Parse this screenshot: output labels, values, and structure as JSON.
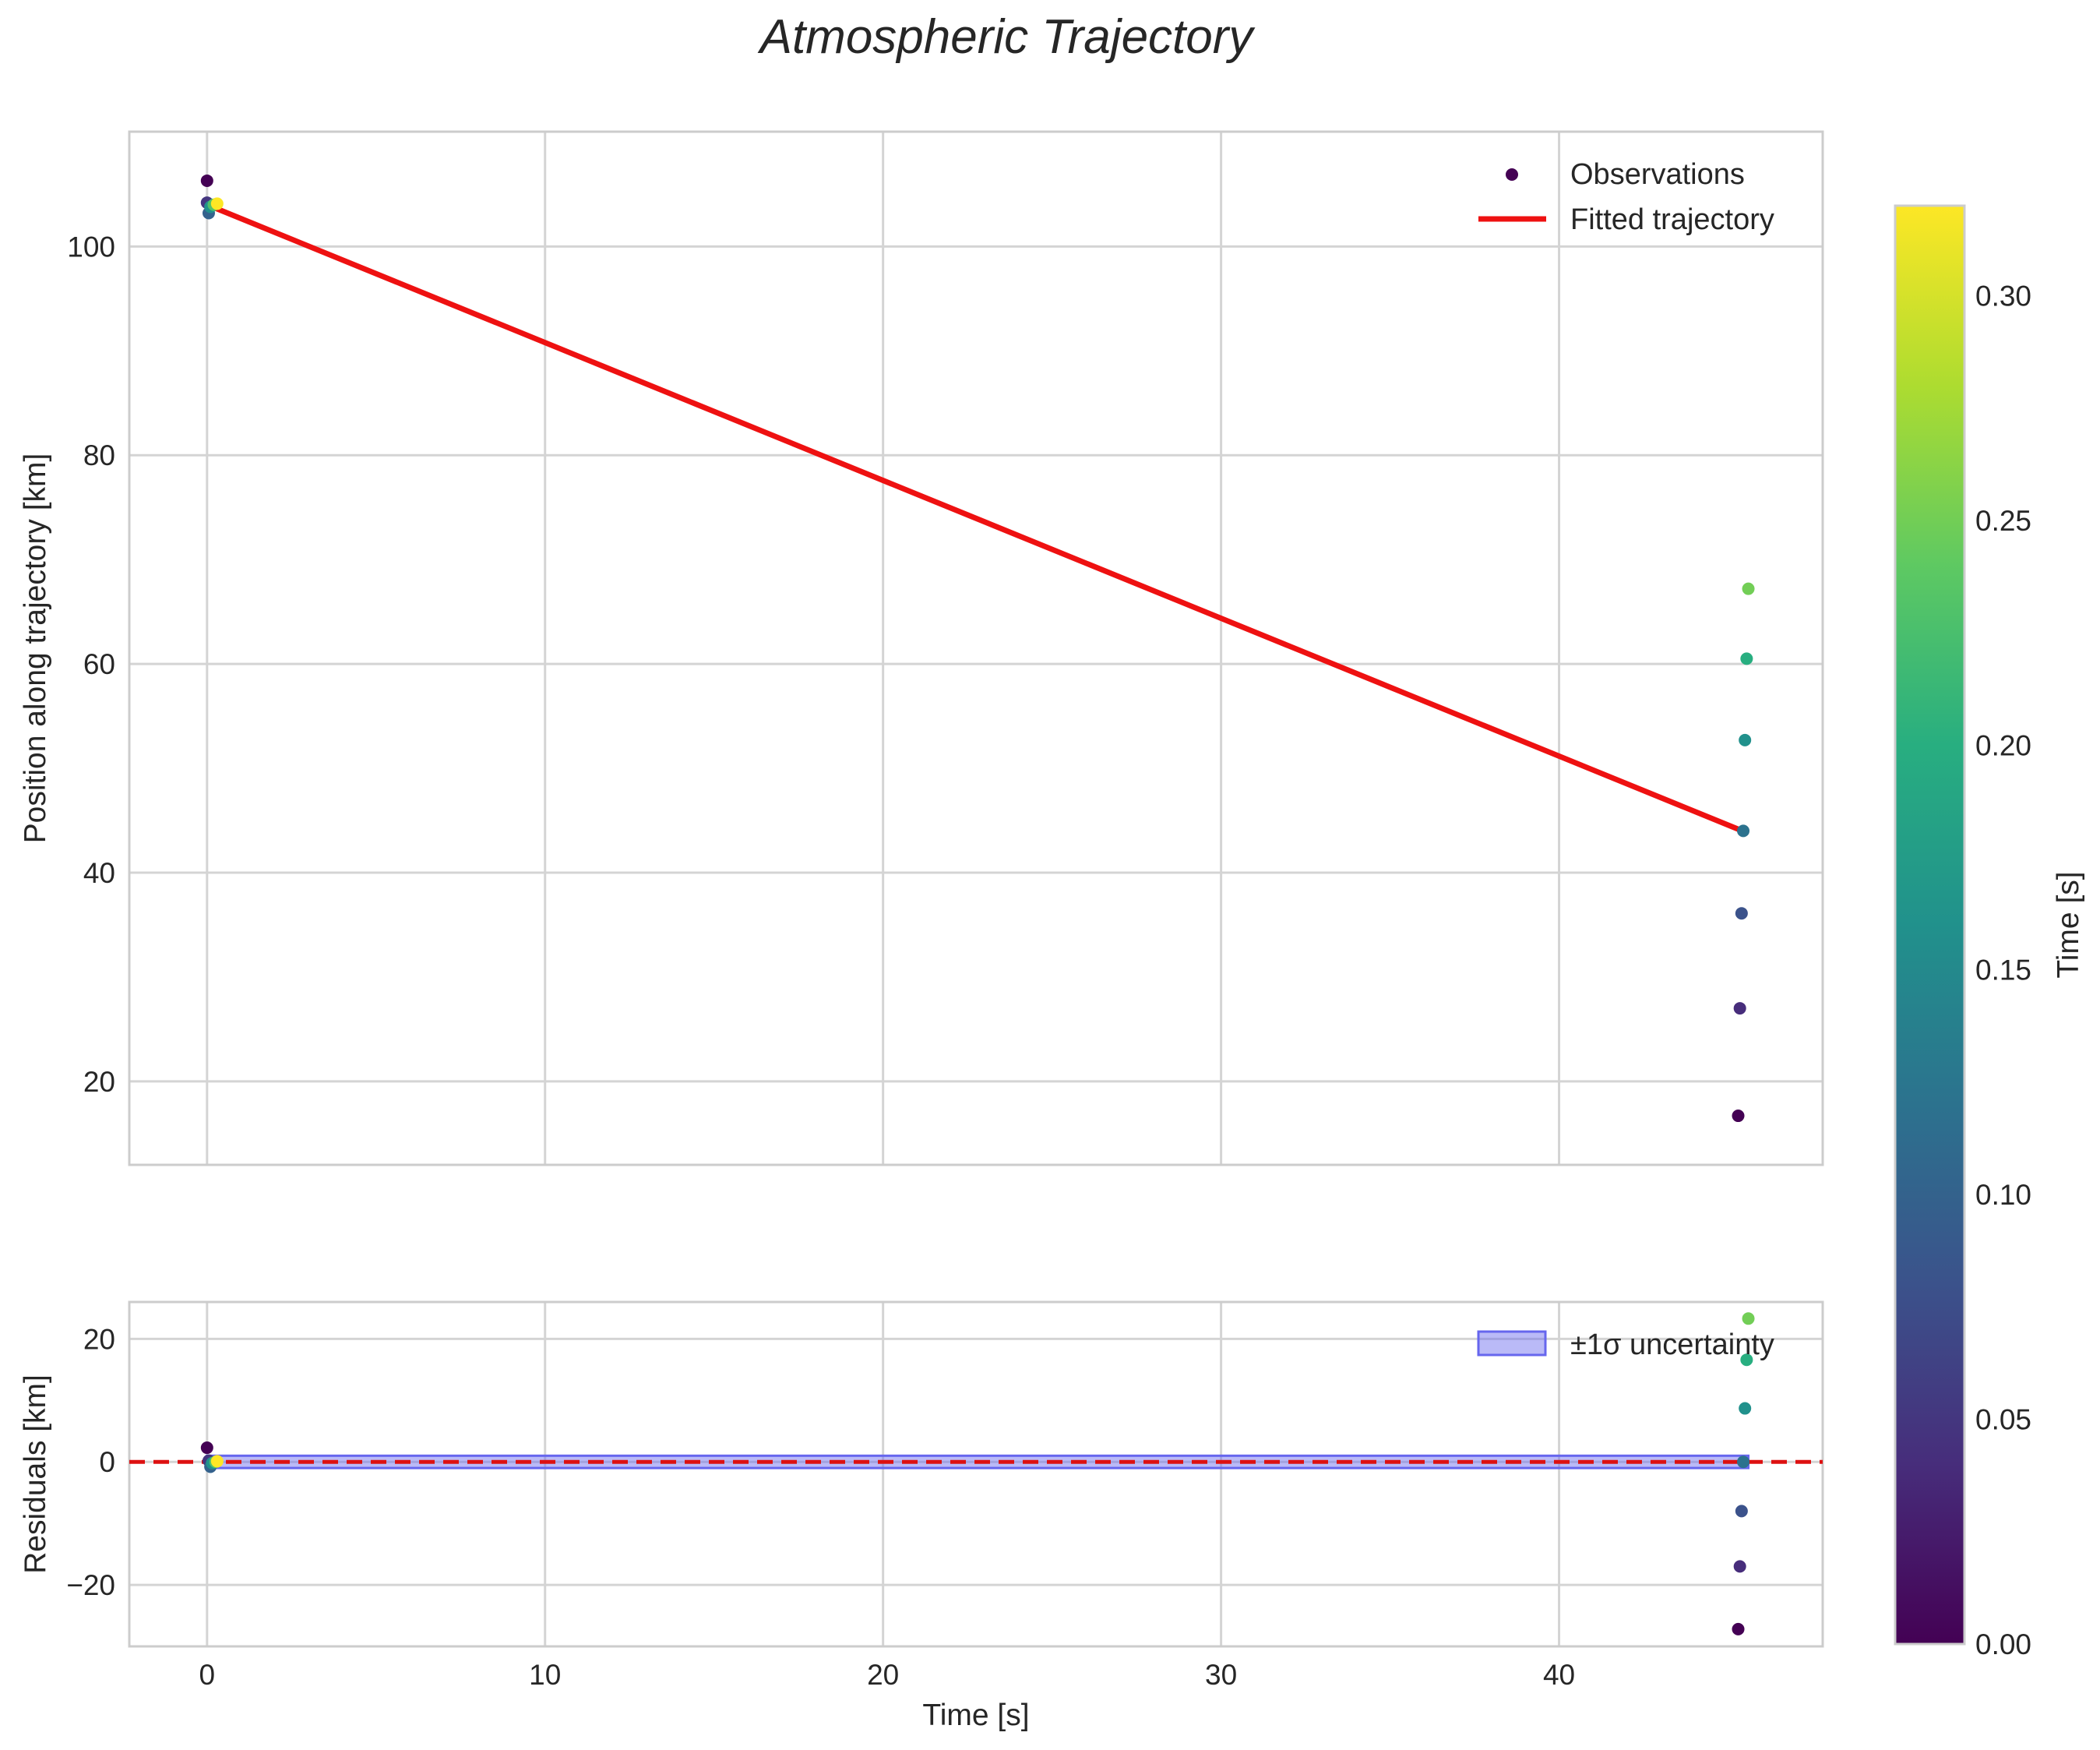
{
  "chart_data": {
    "type": "scatter",
    "title": "Atmospheric Trajectory",
    "top_panel": {
      "ylabel": "Position along trajectory [km]",
      "xlim": [
        -2.3,
        47.8
      ],
      "ylim": [
        12,
        111
      ],
      "xticks": [
        0,
        10,
        20,
        30,
        40
      ],
      "yticks": [
        20,
        40,
        60,
        80,
        100
      ],
      "ytick_labels": [
        "20",
        "40",
        "60",
        "80",
        "100"
      ],
      "grid": true,
      "legend_position": "top-right",
      "legend": {
        "observations": "Observations",
        "fit": "Fitted trajectory"
      },
      "observations": [
        {
          "x": 0.0,
          "y": 106.3,
          "t": 0.0
        },
        {
          "x": 0.0,
          "y": 104.2,
          "t": 0.05
        },
        {
          "x": 0.05,
          "y": 103.2,
          "t": 0.1
        },
        {
          "x": 0.1,
          "y": 103.8,
          "t": 0.16
        },
        {
          "x": 0.2,
          "y": 104.0,
          "t": 0.23
        },
        {
          "x": 0.3,
          "y": 104.1,
          "t": 0.32
        },
        {
          "x": 45.3,
          "y": 16.7,
          "t": 0.0
        },
        {
          "x": 45.35,
          "y": 27.0,
          "t": 0.04
        },
        {
          "x": 45.4,
          "y": 36.1,
          "t": 0.08
        },
        {
          "x": 45.45,
          "y": 44.0,
          "t": 0.12
        },
        {
          "x": 45.5,
          "y": 52.7,
          "t": 0.16
        },
        {
          "x": 45.55,
          "y": 60.5,
          "t": 0.2
        },
        {
          "x": 45.6,
          "y": 67.2,
          "t": 0.25
        }
      ],
      "fitted_line": {
        "x": [
          0.0,
          45.5
        ],
        "y": [
          104.0,
          43.9
        ],
        "color": "#ee1111"
      }
    },
    "bottom_panel": {
      "xlabel": "Time [s]",
      "ylabel": "Residuals [km]",
      "xlim": [
        -2.3,
        47.8
      ],
      "ylim": [
        -30,
        26
      ],
      "xticks": [
        0,
        10,
        20,
        30,
        40
      ],
      "xtick_labels": [
        "0",
        "10",
        "20",
        "30",
        "40"
      ],
      "yticks": [
        -20,
        0,
        20
      ],
      "ytick_labels": [
        "−20",
        "0",
        "20"
      ],
      "grid": true,
      "legend_position": "top-right",
      "legend": {
        "band": "±1σ uncertainty"
      },
      "uncertainty_band": {
        "x": [
          0.0,
          45.6
        ],
        "y": [
          -1.0,
          1.0
        ],
        "color": "#6666ee"
      },
      "zero_line": {
        "y": 0,
        "color": "#dd1111",
        "style": "dashed"
      },
      "residuals": [
        {
          "x": 0.0,
          "y": 2.3,
          "t": 0.0
        },
        {
          "x": 0.05,
          "y": 0.2,
          "t": 0.05
        },
        {
          "x": 0.1,
          "y": -0.8,
          "t": 0.1
        },
        {
          "x": 0.15,
          "y": -0.2,
          "t": 0.16
        },
        {
          "x": 0.25,
          "y": 0.0,
          "t": 0.23
        },
        {
          "x": 0.3,
          "y": 0.1,
          "t": 0.32
        },
        {
          "x": 45.3,
          "y": -27.2,
          "t": 0.0
        },
        {
          "x": 45.35,
          "y": -17.0,
          "t": 0.04
        },
        {
          "x": 45.4,
          "y": -8.0,
          "t": 0.08
        },
        {
          "x": 45.45,
          "y": 0.0,
          "t": 0.12
        },
        {
          "x": 45.5,
          "y": 8.7,
          "t": 0.16
        },
        {
          "x": 45.55,
          "y": 16.6,
          "t": 0.2
        },
        {
          "x": 45.6,
          "y": 23.3,
          "t": 0.25
        }
      ]
    },
    "colorbar": {
      "label": "Time [s]",
      "colormap": "viridis",
      "range": [
        0.0,
        0.32
      ],
      "ticks": [
        0.0,
        0.05,
        0.1,
        0.15,
        0.2,
        0.25,
        0.3
      ],
      "tick_labels": [
        "0.00",
        "0.05",
        "0.10",
        "0.15",
        "0.20",
        "0.25",
        "0.30"
      ]
    }
  }
}
